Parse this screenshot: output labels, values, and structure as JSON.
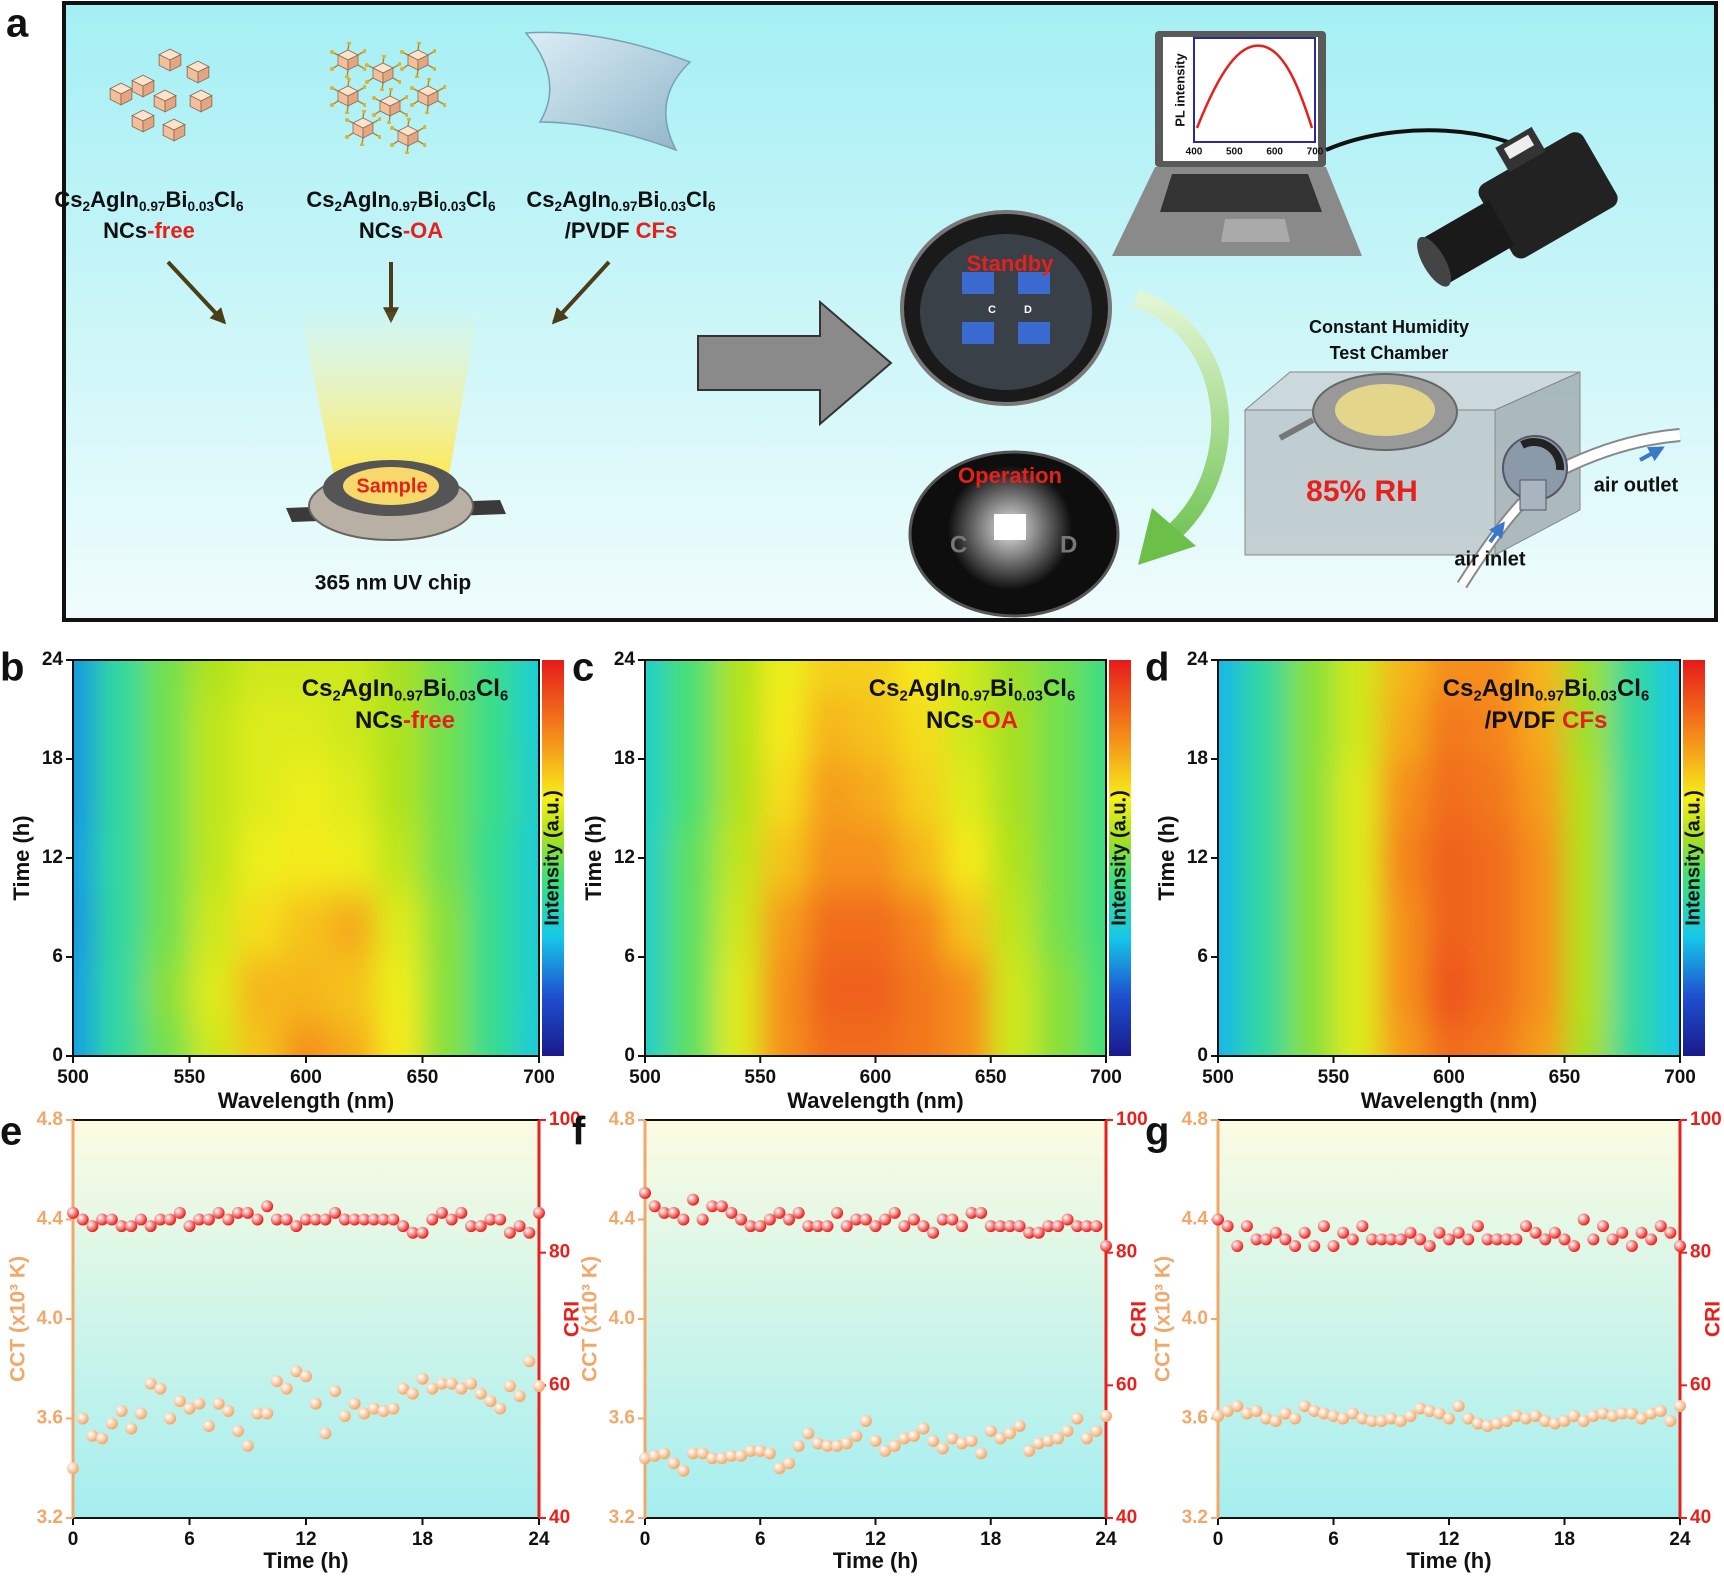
{
  "panel_a": {
    "letter": "a",
    "formula": [
      "Cs",
      "2",
      "AgIn",
      "0.97",
      "Bi",
      "0.03",
      "Cl",
      "6"
    ],
    "samples": [
      [
        "NCs",
        "-free"
      ],
      [
        "NCs",
        "-OA"
      ],
      [
        "/PVDF ",
        "CFs"
      ]
    ],
    "chip_label": "Sample",
    "chip_caption": "365 nm UV chip",
    "standby": "Standby",
    "operation": "Operation",
    "standby_labels": [
      "C",
      "D"
    ],
    "photo_labels": [
      "C",
      "D"
    ],
    "pl_ylabel": "PL intensity",
    "pl_xticks": [
      400,
      500,
      600,
      700
    ],
    "chamber_label": [
      "Constant Humidity",
      "Test Chamber"
    ],
    "humidity": "85% RH",
    "air_outlet": "air outlet",
    "air_inlet": "air inlet"
  },
  "chart_data": [
    {
      "type": "heatmap",
      "letter": "b",
      "label": [
        "Cs",
        "2",
        "AgIn",
        "0.97",
        "Bi",
        "0.03",
        "Cl",
        "6"
      ],
      "label_suffix": [
        "NCs",
        "-free"
      ],
      "xlabel": "Wavelength (nm)",
      "ylabel": "Time (h)",
      "colorbar_label": "Intensity (a.u.)",
      "xlim": [
        500,
        700
      ],
      "xticks": [
        500,
        550,
        600,
        650,
        700
      ],
      "ylim": [
        0,
        24
      ],
      "yticks": [
        0,
        6,
        12,
        18,
        24
      ],
      "zlim": [
        0,
        1
      ],
      "x": [
        500,
        520,
        540,
        560,
        580,
        600,
        620,
        640,
        660,
        680,
        700
      ],
      "y": [
        0,
        4,
        8,
        12,
        16,
        20,
        24
      ],
      "z": [
        [
          0.25,
          0.4,
          0.5,
          0.6,
          0.72,
          0.8,
          0.76,
          0.66,
          0.52,
          0.42,
          0.32
        ],
        [
          0.25,
          0.4,
          0.52,
          0.62,
          0.74,
          0.74,
          0.72,
          0.64,
          0.52,
          0.42,
          0.33
        ],
        [
          0.24,
          0.4,
          0.5,
          0.6,
          0.68,
          0.72,
          0.76,
          0.62,
          0.52,
          0.42,
          0.33
        ],
        [
          0.25,
          0.4,
          0.5,
          0.58,
          0.64,
          0.66,
          0.64,
          0.58,
          0.5,
          0.42,
          0.33
        ],
        [
          0.24,
          0.4,
          0.5,
          0.58,
          0.62,
          0.64,
          0.62,
          0.56,
          0.5,
          0.43,
          0.34
        ],
        [
          0.24,
          0.4,
          0.5,
          0.58,
          0.62,
          0.62,
          0.6,
          0.56,
          0.5,
          0.43,
          0.33
        ],
        [
          0.24,
          0.4,
          0.5,
          0.56,
          0.6,
          0.6,
          0.6,
          0.55,
          0.5,
          0.43,
          0.33
        ]
      ]
    },
    {
      "type": "heatmap",
      "letter": "c",
      "label": [
        "Cs",
        "2",
        "AgIn",
        "0.97",
        "Bi",
        "0.03",
        "Cl",
        "6"
      ],
      "label_suffix": [
        "NCs",
        "-OA"
      ],
      "xlabel": "Wavelength (nm)",
      "ylabel": "Time (h)",
      "colorbar_label": "Intensity (a.u.)",
      "xlim": [
        500,
        700
      ],
      "xticks": [
        500,
        550,
        600,
        650,
        700
      ],
      "ylim": [
        0,
        24
      ],
      "yticks": [
        0,
        6,
        12,
        18,
        24
      ],
      "zlim": [
        0,
        1
      ],
      "x": [
        500,
        520,
        540,
        560,
        580,
        600,
        620,
        640,
        660,
        680,
        700
      ],
      "y": [
        0,
        4,
        8,
        12,
        16,
        20,
        24
      ],
      "z": [
        [
          0.35,
          0.48,
          0.62,
          0.8,
          0.86,
          0.86,
          0.84,
          0.8,
          0.6,
          0.52,
          0.45
        ],
        [
          0.35,
          0.48,
          0.62,
          0.8,
          0.88,
          0.88,
          0.84,
          0.8,
          0.6,
          0.52,
          0.45
        ],
        [
          0.35,
          0.48,
          0.6,
          0.78,
          0.86,
          0.86,
          0.82,
          0.72,
          0.58,
          0.5,
          0.44
        ],
        [
          0.35,
          0.48,
          0.58,
          0.72,
          0.8,
          0.8,
          0.74,
          0.66,
          0.56,
          0.5,
          0.44
        ],
        [
          0.35,
          0.46,
          0.56,
          0.68,
          0.78,
          0.76,
          0.7,
          0.62,
          0.55,
          0.5,
          0.44
        ],
        [
          0.35,
          0.46,
          0.56,
          0.66,
          0.74,
          0.72,
          0.68,
          0.6,
          0.55,
          0.5,
          0.44
        ],
        [
          0.35,
          0.46,
          0.56,
          0.64,
          0.7,
          0.7,
          0.66,
          0.6,
          0.54,
          0.5,
          0.44
        ]
      ]
    },
    {
      "type": "heatmap",
      "letter": "d",
      "label": [
        "Cs",
        "2",
        "AgIn",
        "0.97",
        "Bi",
        "0.03",
        "Cl",
        "6"
      ],
      "label_suffix": [
        "/PVDF ",
        "CFs"
      ],
      "xlabel": "Wavelength (nm)",
      "ylabel": "Time (h)",
      "colorbar_label": "Intensity (a.u.)",
      "xlim": [
        500,
        700
      ],
      "xticks": [
        500,
        550,
        600,
        650,
        700
      ],
      "ylim": [
        0,
        24
      ],
      "yticks": [
        0,
        6,
        12,
        18,
        24
      ],
      "zlim": [
        0,
        1
      ],
      "x": [
        500,
        520,
        540,
        560,
        580,
        600,
        620,
        640,
        660,
        680,
        700
      ],
      "y": [
        0,
        4,
        8,
        12,
        16,
        20,
        24
      ],
      "z": [
        [
          0.28,
          0.4,
          0.52,
          0.62,
          0.78,
          0.86,
          0.84,
          0.78,
          0.55,
          0.4,
          0.3
        ],
        [
          0.28,
          0.4,
          0.52,
          0.62,
          0.8,
          0.9,
          0.86,
          0.8,
          0.56,
          0.4,
          0.3
        ],
        [
          0.28,
          0.4,
          0.52,
          0.62,
          0.8,
          0.88,
          0.86,
          0.8,
          0.56,
          0.4,
          0.3
        ],
        [
          0.28,
          0.4,
          0.52,
          0.62,
          0.82,
          0.88,
          0.86,
          0.8,
          0.56,
          0.4,
          0.3
        ],
        [
          0.28,
          0.4,
          0.52,
          0.62,
          0.8,
          0.86,
          0.84,
          0.78,
          0.56,
          0.4,
          0.3
        ],
        [
          0.28,
          0.4,
          0.52,
          0.6,
          0.76,
          0.84,
          0.82,
          0.76,
          0.54,
          0.4,
          0.3
        ],
        [
          0.28,
          0.4,
          0.52,
          0.6,
          0.74,
          0.8,
          0.8,
          0.74,
          0.54,
          0.4,
          0.3
        ]
      ]
    },
    {
      "type": "scatter",
      "letter": "e",
      "xlabel": "Time (h)",
      "ylabel": "CCT (x10³ K)",
      "y2label": "CRI",
      "xlim": [
        0,
        24
      ],
      "xticks": [
        0,
        6,
        12,
        18,
        24
      ],
      "ylim": [
        3.2,
        4.8
      ],
      "yticks": [
        3.2,
        3.6,
        {
          "value": 4,
          "label": "4.0"
        },
        4.4,
        4.8
      ],
      "y2lim": [
        40,
        100
      ],
      "y2ticks": [
        40,
        60,
        80,
        100
      ],
      "x": [
        0,
        0.5,
        1,
        1.5,
        2,
        2.5,
        3,
        3.5,
        4,
        4.5,
        5,
        5.5,
        6,
        6.5,
        7,
        7.5,
        8,
        8.5,
        9,
        9.5,
        10,
        10.5,
        11,
        11.5,
        12,
        12.5,
        13,
        13.5,
        14,
        14.5,
        15,
        15.5,
        16,
        16.5,
        17,
        17.5,
        18,
        18.5,
        19,
        19.5,
        20,
        20.5,
        21,
        21.5,
        22,
        22.5,
        23,
        23.5,
        24
      ],
      "series": [
        {
          "color": "#f2a86a",
          "values": [
            3.4,
            3.6,
            3.53,
            3.52,
            3.58,
            3.63,
            3.56,
            3.62,
            3.74,
            3.72,
            3.6,
            3.67,
            3.64,
            3.66,
            3.57,
            3.66,
            3.63,
            3.55,
            3.49,
            3.62,
            3.62,
            3.75,
            3.72,
            3.79,
            3.77,
            3.66,
            3.54,
            3.71,
            3.61,
            3.66,
            3.62,
            3.64,
            3.63,
            3.64,
            3.72,
            3.7,
            3.76,
            3.72,
            3.74,
            3.74,
            3.72,
            3.74,
            3.7,
            3.67,
            3.64,
            3.73,
            3.69,
            3.83,
            3.73
          ]
        },
        {
          "color": "#e8201c",
          "axis": "y2",
          "values": [
            86,
            85,
            84,
            85,
            85,
            84,
            84,
            85,
            84,
            85,
            85,
            86,
            84,
            85,
            85,
            86,
            85,
            86,
            86,
            85,
            87,
            85,
            85,
            84,
            85,
            85,
            85,
            86,
            85,
            85,
            85,
            85,
            85,
            85,
            84,
            83,
            83,
            85,
            86,
            85,
            86,
            84,
            84,
            85,
            85,
            83,
            84,
            83,
            86
          ]
        }
      ]
    },
    {
      "type": "scatter",
      "letter": "f",
      "xlabel": "Time (h)",
      "ylabel": "CCT (x10³ K)",
      "y2label": "CRI",
      "xlim": [
        0,
        24
      ],
      "xticks": [
        0,
        6,
        12,
        18,
        24
      ],
      "ylim": [
        3.2,
        4.8
      ],
      "yticks": [
        3.2,
        3.6,
        {
          "value": 4,
          "label": "4.0"
        },
        4.4,
        4.8
      ],
      "y2lim": [
        40,
        100
      ],
      "y2ticks": [
        40,
        60,
        80,
        100
      ],
      "x": [
        0,
        0.5,
        1,
        1.5,
        2,
        2.5,
        3,
        3.5,
        4,
        4.5,
        5,
        5.5,
        6,
        6.5,
        7,
        7.5,
        8,
        8.5,
        9,
        9.5,
        10,
        10.5,
        11,
        11.5,
        12,
        12.5,
        13,
        13.5,
        14,
        14.5,
        15,
        15.5,
        16,
        16.5,
        17,
        17.5,
        18,
        18.5,
        19,
        19.5,
        20,
        20.5,
        21,
        21.5,
        22,
        22.5,
        23,
        23.5,
        24
      ],
      "series": [
        {
          "color": "#f2a86a",
          "values": [
            3.44,
            3.45,
            3.46,
            3.42,
            3.39,
            3.46,
            3.46,
            3.44,
            3.44,
            3.45,
            3.45,
            3.47,
            3.47,
            3.46,
            3.4,
            3.42,
            3.49,
            3.54,
            3.5,
            3.49,
            3.49,
            3.5,
            3.53,
            3.59,
            3.51,
            3.47,
            3.49,
            3.52,
            3.53,
            3.56,
            3.51,
            3.48,
            3.52,
            3.5,
            3.51,
            3.46,
            3.55,
            3.52,
            3.54,
            3.57,
            3.47,
            3.5,
            3.51,
            3.52,
            3.55,
            3.6,
            3.52,
            3.55,
            3.61
          ]
        },
        {
          "color": "#e8201c",
          "axis": "y2",
          "values": [
            89,
            87,
            86,
            86,
            85,
            88,
            85,
            87,
            87,
            86,
            85,
            84,
            84,
            85,
            86,
            85,
            86,
            84,
            84,
            84,
            86,
            84,
            85,
            85,
            84,
            85,
            86,
            84,
            85,
            84,
            83,
            85,
            85,
            84,
            86,
            86,
            84,
            84,
            84,
            84,
            83,
            83,
            84,
            84,
            85,
            84,
            84,
            84,
            81
          ]
        }
      ]
    },
    {
      "type": "scatter",
      "letter": "g",
      "xlabel": "Time (h)",
      "ylabel": "CCT (x10³ K)",
      "y2label": "CRI",
      "xlim": [
        0,
        24
      ],
      "xticks": [
        0,
        6,
        12,
        18,
        24
      ],
      "ylim": [
        3.2,
        4.8
      ],
      "yticks": [
        3.2,
        3.6,
        {
          "value": 4,
          "label": "4.0"
        },
        4.4,
        4.8
      ],
      "y2lim": [
        40,
        100
      ],
      "y2ticks": [
        40,
        60,
        80,
        100
      ],
      "x": [
        0,
        0.5,
        1,
        1.5,
        2,
        2.5,
        3,
        3.5,
        4,
        4.5,
        5,
        5.5,
        6,
        6.5,
        7,
        7.5,
        8,
        8.5,
        9,
        9.5,
        10,
        10.5,
        11,
        11.5,
        12,
        12.5,
        13,
        13.5,
        14,
        14.5,
        15,
        15.5,
        16,
        16.5,
        17,
        17.5,
        18,
        18.5,
        19,
        19.5,
        20,
        20.5,
        21,
        21.5,
        22,
        22.5,
        23,
        23.5,
        24
      ],
      "series": [
        {
          "color": "#f2a86a",
          "values": [
            3.61,
            3.63,
            3.65,
            3.62,
            3.63,
            3.6,
            3.59,
            3.62,
            3.6,
            3.65,
            3.63,
            3.62,
            3.61,
            3.6,
            3.62,
            3.6,
            3.59,
            3.59,
            3.6,
            3.59,
            3.61,
            3.64,
            3.63,
            3.62,
            3.6,
            3.65,
            3.6,
            3.58,
            3.57,
            3.58,
            3.59,
            3.61,
            3.6,
            3.61,
            3.59,
            3.58,
            3.59,
            3.61,
            3.59,
            3.61,
            3.62,
            3.61,
            3.62,
            3.62,
            3.6,
            3.62,
            3.63,
            3.59,
            3.65
          ]
        },
        {
          "color": "#e8201c",
          "axis": "y2",
          "values": [
            85,
            84,
            81,
            84,
            82,
            82,
            83,
            82,
            81,
            83,
            81,
            84,
            81,
            83,
            82,
            84,
            82,
            82,
            82,
            82,
            83,
            82,
            81,
            83,
            82,
            83,
            82,
            84,
            82,
            82,
            82,
            82,
            84,
            83,
            82,
            83,
            82,
            81,
            85,
            82,
            84,
            82,
            83,
            81,
            83,
            82,
            84,
            83,
            81
          ]
        }
      ]
    }
  ]
}
